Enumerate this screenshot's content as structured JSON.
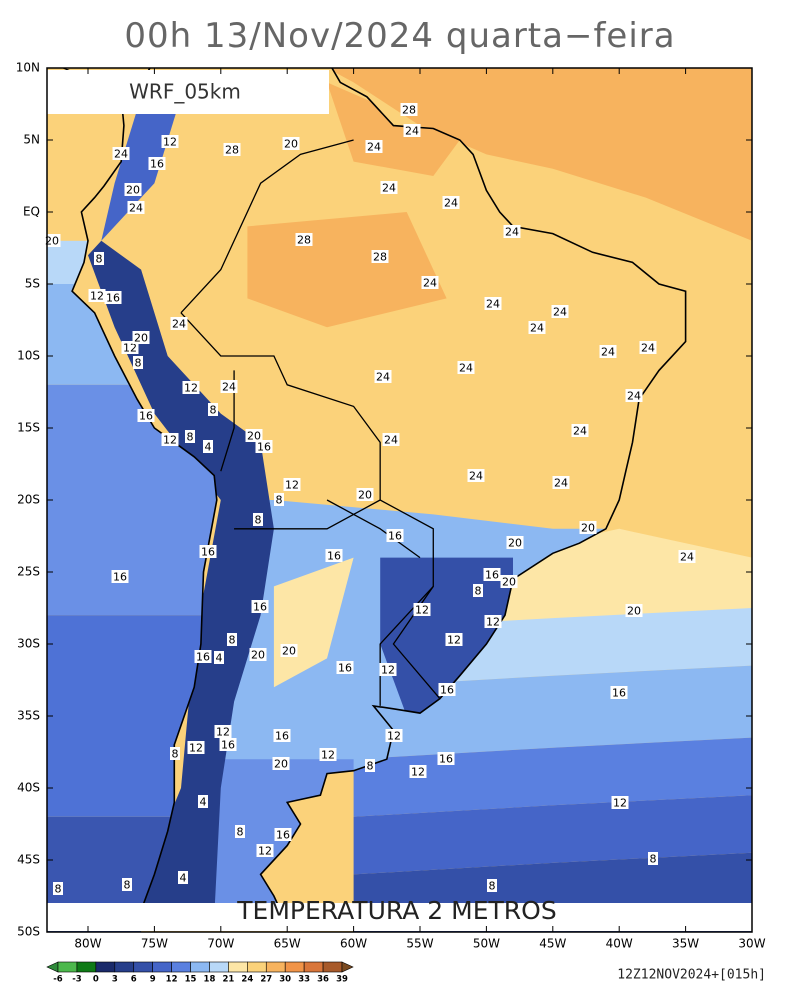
{
  "title": "00h 13/Nov/2024 quarta−feira",
  "model": "WRF_05km",
  "field": "TEMPERATURA 2 METROS",
  "run": "12Z12NOV2024+[015h]",
  "lat_ticks": [
    {
      "value": 10,
      "label": "10N"
    },
    {
      "value": 5,
      "label": "5N"
    },
    {
      "value": 0,
      "label": "EQ"
    },
    {
      "value": -5,
      "label": "5S"
    },
    {
      "value": -10,
      "label": "10S"
    },
    {
      "value": -15,
      "label": "15S"
    },
    {
      "value": -20,
      "label": "20S"
    },
    {
      "value": -25,
      "label": "25S"
    },
    {
      "value": -30,
      "label": "30S"
    },
    {
      "value": -35,
      "label": "35S"
    },
    {
      "value": -40,
      "label": "40S"
    },
    {
      "value": -45,
      "label": "45S"
    },
    {
      "value": -50,
      "label": "50S"
    }
  ],
  "lon_ticks": [
    {
      "value": -80,
      "label": "80W"
    },
    {
      "value": -75,
      "label": "75W"
    },
    {
      "value": -70,
      "label": "70W"
    },
    {
      "value": -65,
      "label": "65W"
    },
    {
      "value": -60,
      "label": "60W"
    },
    {
      "value": -55,
      "label": "55W"
    },
    {
      "value": -50,
      "label": "50W"
    },
    {
      "value": -45,
      "label": "45W"
    },
    {
      "value": -40,
      "label": "40W"
    },
    {
      "value": -35,
      "label": "35W"
    },
    {
      "value": -30,
      "label": "30W"
    }
  ],
  "colorbar": {
    "levels": [
      -6,
      -3,
      0,
      3,
      6,
      9,
      12,
      15,
      18,
      21,
      24,
      27,
      30,
      33,
      36,
      39
    ],
    "colors": [
      "#2f8a3a",
      "#4cb84c",
      "#0e7a16",
      "#1a2a6a",
      "#263e8a",
      "#3450a8",
      "#4565c8",
      "#5a80e0",
      "#8cb8f2",
      "#b8d8f8",
      "#fde6a6",
      "#fbd27a",
      "#f7b35e",
      "#f19448",
      "#d9763a",
      "#a85a2a",
      "#7a4a20"
    ]
  },
  "contour_labels": [
    "28",
    "24",
    "24",
    "20",
    "28",
    "12",
    "16",
    "24",
    "20",
    "24",
    "24",
    "24",
    "24",
    "28",
    "28",
    "24",
    "24",
    "24",
    "24",
    "24",
    "24",
    "24",
    "24",
    "24",
    "24",
    "24",
    "24",
    "24",
    "20",
    "20",
    "24",
    "20",
    "16",
    "16",
    "12",
    "12",
    "8",
    "8",
    "12",
    "12",
    "12",
    "12",
    "8",
    "16",
    "20",
    "16",
    "12",
    "12",
    "8",
    "16",
    "16",
    "20",
    "16",
    "16",
    "8",
    "8",
    "12",
    "16",
    "20",
    "4",
    "8",
    "12",
    "16",
    "8",
    "12",
    "24",
    "12",
    "20",
    "8",
    "12",
    "16",
    "8",
    "20",
    "24",
    "16",
    "16",
    "4",
    "8",
    "20",
    "20",
    "16",
    "12",
    "16",
    "12",
    "8",
    "16",
    "20",
    "4",
    "8",
    "16",
    "12",
    "8",
    "8",
    "4"
  ]
}
